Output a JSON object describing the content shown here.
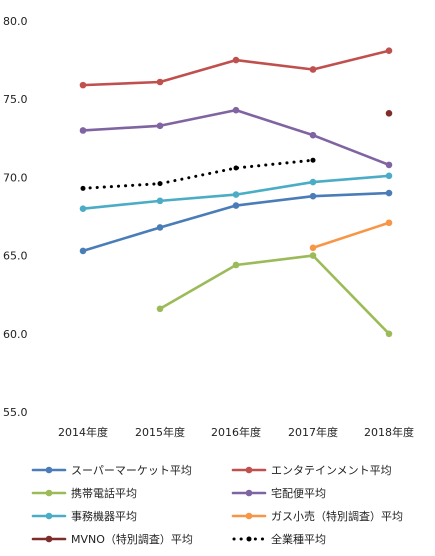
{
  "chart_data": {
    "type": "line",
    "categories": [
      "2014年度",
      "2015年度",
      "2016年度",
      "2017年度",
      "2018年度"
    ],
    "ylim": [
      55,
      80
    ],
    "yticks": [
      "55.0",
      "60.0",
      "65.0",
      "70.0",
      "75.0",
      "80.0"
    ],
    "grid": false,
    "legend_position": "bottom",
    "series": [
      {
        "name": "スーパーマーケット平均",
        "color": "#4a7db8",
        "style": "solid",
        "values": [
          65.3,
          66.8,
          68.2,
          68.8,
          69.0
        ]
      },
      {
        "name": "エンタテインメント平均",
        "color": "#c0504d",
        "style": "solid",
        "values": [
          75.9,
          76.1,
          77.5,
          76.9,
          78.1
        ]
      },
      {
        "name": "携帯電話平均",
        "color": "#9bbb59",
        "style": "solid",
        "values": [
          null,
          61.6,
          64.4,
          65.0,
          60.0
        ]
      },
      {
        "name": "宅配便平均",
        "color": "#8064a2",
        "style": "solid",
        "values": [
          73.0,
          73.3,
          74.3,
          72.7,
          70.8
        ]
      },
      {
        "name": "事務機器平均",
        "color": "#4bacc6",
        "style": "solid",
        "values": [
          68.0,
          68.5,
          68.9,
          69.7,
          70.1
        ]
      },
      {
        "name": "ガス小売（特別調査）平均",
        "color": "#f79646",
        "style": "solid",
        "values": [
          null,
          null,
          null,
          65.5,
          67.1
        ]
      },
      {
        "name": "MVNO（特別調査）平均",
        "color": "#7f2d2b",
        "style": "solid",
        "values": [
          null,
          null,
          null,
          null,
          74.1
        ]
      },
      {
        "name": "全業種平均",
        "color": "#000000",
        "style": "dotted",
        "values": [
          69.3,
          69.6,
          70.6,
          71.1,
          null
        ]
      }
    ]
  }
}
